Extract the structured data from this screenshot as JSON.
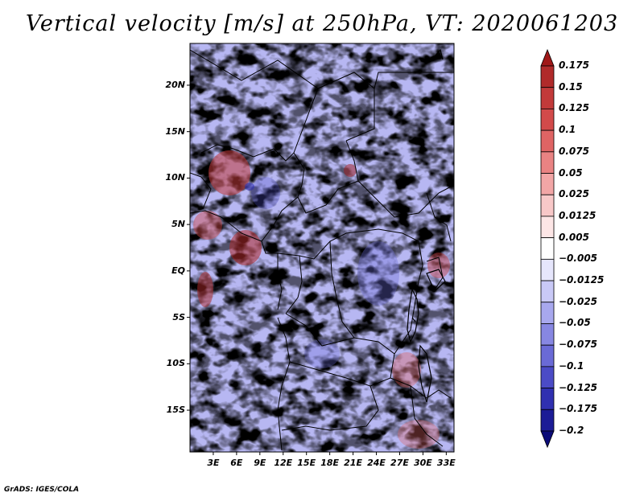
{
  "title": "Vertical velocity [m/s] at 250hPa, VT: 2020061203",
  "credit": "GrADS: IGES/COLA",
  "map": {
    "lat_labels": [
      "20N",
      "15N",
      "10N",
      "5N",
      "EQ",
      "5S",
      "10S",
      "15S"
    ],
    "lon_labels": [
      "3E",
      "6E",
      "9E",
      "12E",
      "15E",
      "18E",
      "21E",
      "24E",
      "27E",
      "30E",
      "33E"
    ],
    "lat_values": [
      20,
      15,
      10,
      5,
      0,
      -5,
      -10,
      -15
    ],
    "lon_values": [
      3,
      6,
      9,
      12,
      15,
      18,
      21,
      24,
      27,
      30,
      33
    ],
    "lon_range": [
      0,
      34
    ],
    "lat_range": [
      -19.5,
      24.5
    ]
  },
  "colorbar": {
    "levels": [
      "0.175",
      "0.15",
      "0.125",
      "0.1",
      "0.075",
      "0.05",
      "0.025",
      "0.0125",
      "0.005",
      "−0.005",
      "−0.0125",
      "−0.025",
      "−0.05",
      "−0.075",
      "−0.1",
      "−0.125",
      "−0.175",
      "−0.2"
    ],
    "colors": [
      "#a01818",
      "#b02a2a",
      "#c23a3a",
      "#d24a4a",
      "#df6464",
      "#e98383",
      "#f2a6a6",
      "#f8c8c8",
      "#fde6e6",
      "#ffffff",
      "#e6e6fc",
      "#c9c9f6",
      "#a8a8ee",
      "#8787e2",
      "#6a6ad6",
      "#4b4bc6",
      "#3030b0",
      "#1c1c96",
      "#0b0b78"
    ]
  }
}
